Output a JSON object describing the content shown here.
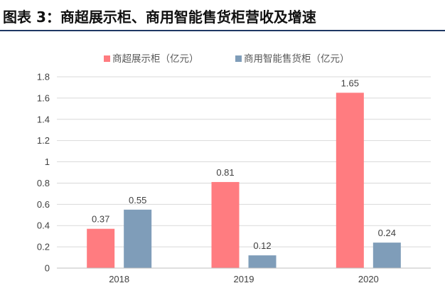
{
  "figure": {
    "title": "图表 3：商超展示柜、商用智能售货柜营收及增速"
  },
  "chart_data": {
    "type": "bar",
    "categories": [
      "2018",
      "2019",
      "2020"
    ],
    "series": [
      {
        "name": "商超展示柜（亿元）",
        "values": [
          0.37,
          0.81,
          1.65
        ],
        "color": "#ff7c80",
        "labels": [
          "0.37",
          "0.81",
          "1.65"
        ]
      },
      {
        "name": "商用智能售货柜（亿元）",
        "values": [
          0.55,
          0.12,
          0.24
        ],
        "color": "#7f9db9",
        "labels": [
          "0.55",
          "0.12",
          "0.24"
        ]
      }
    ],
    "ylim": [
      0,
      1.8
    ],
    "yticks": [
      0,
      0.2,
      0.4,
      0.6,
      0.8,
      1,
      1.2,
      1.4,
      1.6,
      1.8
    ],
    "ytick_labels": [
      "0",
      "0.2",
      "0.4",
      "0.6",
      "0.8",
      "1",
      "1.2",
      "1.4",
      "1.6",
      "1.8"
    ],
    "grid": true,
    "legend_position": "top-center",
    "xlabel": "",
    "ylabel": ""
  }
}
